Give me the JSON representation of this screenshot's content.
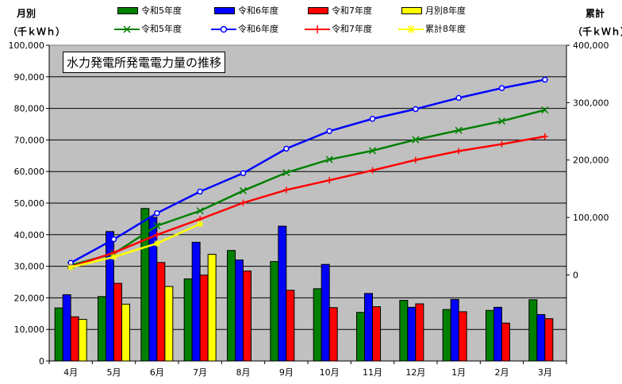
{
  "chart_data": {
    "type": "bar+line",
    "title": "水力発電所発電電力量の推移",
    "left_axis_title": [
      "月別",
      "（千ｋＷｈ）"
    ],
    "right_axis_title": [
      "累計",
      "（千ｋＷｈ）"
    ],
    "categories": [
      "4月",
      "5月",
      "6月",
      "7月",
      "8月",
      "9月",
      "10月",
      "11月",
      "12月",
      "1月",
      "2月",
      "3月"
    ],
    "left_axis": {
      "ylim": [
        0,
        100000
      ],
      "ticks": [
        0,
        10000,
        20000,
        30000,
        40000,
        50000,
        60000,
        70000,
        80000,
        90000,
        100000
      ],
      "tick_labels": [
        "0",
        "10,000",
        "20,000",
        "30,000",
        "40,000",
        "50,000",
        "60,000",
        "70,000",
        "80,000",
        "90,000",
        "100,000"
      ]
    },
    "right_axis": {
      "ylim": [
        -150000,
        400000
      ],
      "ticks": [
        0,
        100000,
        200000,
        300000,
        400000
      ],
      "tick_labels": [
        "0",
        "100,000",
        "200,000",
        "300,000",
        "400,000"
      ]
    },
    "bar_series": [
      {
        "name": "令和5年度",
        "color": "#008000",
        "values": [
          16800,
          20400,
          48300,
          26000,
          35000,
          31500,
          22900,
          15400,
          19200,
          16300,
          16000,
          19400
        ]
      },
      {
        "name": "令和6年度",
        "color": "#0000ff",
        "values": [
          21000,
          41000,
          45500,
          37600,
          32000,
          42700,
          30600,
          21400,
          17000,
          19500,
          17000,
          14700
        ]
      },
      {
        "name": "令和7年度",
        "color": "#ff0000",
        "values": [
          14000,
          24600,
          31200,
          27200,
          28500,
          22400,
          16900,
          17200,
          18100,
          15600,
          12000,
          13400
        ]
      },
      {
        "name": "月別8年度",
        "color": "#ffff00",
        "values": [
          13200,
          18000,
          23600,
          33800
        ]
      }
    ],
    "line_series": [
      {
        "name": "令和5年度",
        "color": "#008000",
        "marker": "x",
        "values": [
          16800,
          37200,
          85500,
          111500,
          146500,
          178000,
          200900,
          216300,
          235500,
          251800,
          267800,
          287200
        ]
      },
      {
        "name": "令和6年度",
        "color": "#0000ff",
        "marker": "o",
        "values": [
          21000,
          62000,
          107500,
          145100,
          177100,
          219800,
          250400,
          271800,
          288800,
          308300,
          325300,
          340000
        ]
      },
      {
        "name": "令和7年度",
        "color": "#ff0000",
        "marker": "+",
        "values": [
          14000,
          38600,
          69800,
          97000,
          125500,
          147900,
          164800,
          182000,
          200100,
          215700,
          227700,
          241100
        ]
      },
      {
        "name": "累計8年度",
        "color": "#ffff00",
        "marker": "*",
        "values": [
          13200,
          31200,
          54800,
          88600
        ]
      }
    ],
    "grid": true,
    "legend_position": "top"
  }
}
